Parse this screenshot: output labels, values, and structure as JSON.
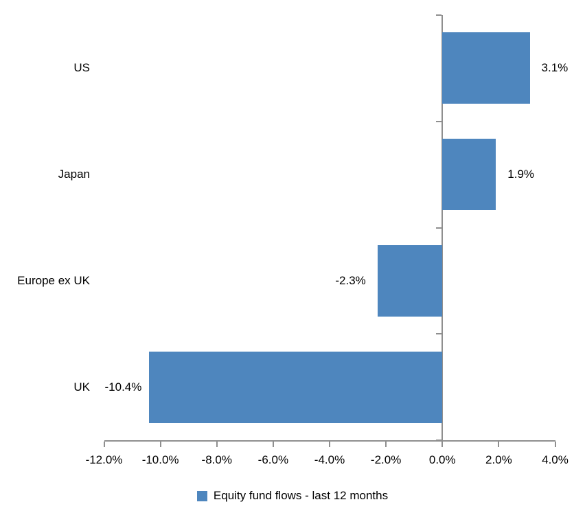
{
  "chart_data": {
    "type": "bar",
    "orientation": "horizontal",
    "title": "",
    "categories": [
      "US",
      "Japan",
      "Europe ex UK",
      "UK"
    ],
    "values": [
      3.1,
      1.9,
      -2.3,
      -10.4
    ],
    "value_labels": [
      "3.1%",
      "1.9%",
      "-2.3%",
      "-10.4%"
    ],
    "series": [
      {
        "name": "Equity fund flows - last 12 months",
        "values": [
          3.1,
          1.9,
          -2.3,
          -10.4
        ]
      }
    ],
    "xlim": [
      -12,
      4
    ],
    "x_tick_values": [
      -12,
      -10,
      -8,
      -6,
      -4,
      -2,
      0,
      2,
      4
    ],
    "x_tick_labels": [
      "-12.0%",
      "-10.0%",
      "-8.0%",
      "-6.0%",
      "-4.0%",
      "-2.0%",
      "0.0%",
      "2.0%",
      "4.0%"
    ],
    "xlabel": "",
    "ylabel": "",
    "grid": false,
    "legend_position": "bottom",
    "legend_label": "Equity fund flows - last 12 months",
    "bar_color": "#4E86BE",
    "axis_color": "#8F8F8F",
    "label_color": "#000000",
    "background": "#FFFFFF"
  }
}
